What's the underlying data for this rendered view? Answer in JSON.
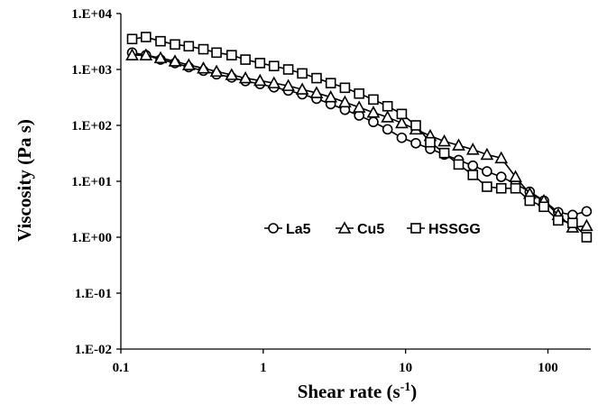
{
  "chart_data": {
    "type": "line",
    "x_scale": "log",
    "y_scale": "log",
    "xlim": [
      0.1,
      200
    ],
    "ylim": [
      0.01,
      10000
    ],
    "grid": false,
    "legend_position": "center-right",
    "xlabel": "Shear rate (s",
    "xlabel_sup": "-1",
    "xlabel_end": ")",
    "ylabel": "Viscosity (Pa s)",
    "x_ticks": [
      {
        "value": 0.1,
        "label": "0.1"
      },
      {
        "value": 1,
        "label": "1"
      },
      {
        "value": 10,
        "label": "10"
      },
      {
        "value": 100,
        "label": "100"
      }
    ],
    "y_ticks": [
      {
        "value": 0.01,
        "label": "1.E-02"
      },
      {
        "value": 0.1,
        "label": "1.E-01"
      },
      {
        "value": 1,
        "label": "1.E+00"
      },
      {
        "value": 10,
        "label": "1.E+01"
      },
      {
        "value": 100,
        "label": "1.E+02"
      },
      {
        "value": 1000,
        "label": "1.E+03"
      },
      {
        "value": 10000,
        "label": "1.E+04"
      }
    ],
    "series": [
      {
        "name": "La5",
        "marker": "circle",
        "x": [
          0.12,
          0.15,
          0.19,
          0.24,
          0.3,
          0.38,
          0.47,
          0.6,
          0.75,
          0.95,
          1.19,
          1.5,
          1.88,
          2.37,
          2.98,
          3.75,
          4.72,
          5.94,
          7.47,
          9.4,
          11.8,
          14.9,
          18.7,
          23.6,
          29.7,
          37.3,
          47,
          59.2,
          74.5,
          93.7,
          118,
          149,
          187
        ],
        "y": [
          2000,
          1800,
          1500,
          1300,
          1100,
          950,
          820,
          720,
          620,
          550,
          480,
          420,
          360,
          300,
          240,
          190,
          150,
          115,
          85,
          60,
          48,
          38,
          30,
          24,
          19,
          15,
          12,
          9,
          6.5,
          4.5,
          2.8,
          2.5,
          2.9
        ]
      },
      {
        "name": "Cu5",
        "marker": "triangle",
        "x": [
          0.12,
          0.15,
          0.19,
          0.24,
          0.3,
          0.38,
          0.47,
          0.6,
          0.75,
          0.95,
          1.19,
          1.5,
          1.88,
          2.37,
          2.98,
          3.75,
          4.72,
          5.94,
          7.47,
          9.4,
          11.8,
          14.9,
          18.7,
          23.6,
          29.7,
          37.3,
          47,
          59.2,
          74.5,
          93.7,
          118,
          149,
          187
        ],
        "y": [
          1800,
          1800,
          1600,
          1400,
          1200,
          1050,
          920,
          800,
          700,
          630,
          570,
          510,
          440,
          380,
          320,
          260,
          210,
          170,
          140,
          110,
          85,
          65,
          52,
          44,
          37,
          30,
          26,
          12,
          6,
          4.5,
          2.5,
          1.5,
          1.6
        ]
      },
      {
        "name": "HSSGG",
        "marker": "square",
        "x": [
          0.12,
          0.15,
          0.19,
          0.24,
          0.3,
          0.38,
          0.47,
          0.6,
          0.75,
          0.95,
          1.19,
          1.5,
          1.88,
          2.37,
          2.98,
          3.75,
          4.72,
          5.94,
          7.47,
          9.4,
          11.8,
          14.9,
          18.7,
          23.6,
          29.7,
          37.3,
          47,
          59.2,
          74.5,
          93.7,
          118,
          149,
          187
        ],
        "y": [
          3500,
          3800,
          3200,
          2800,
          2600,
          2300,
          2000,
          1800,
          1500,
          1300,
          1150,
          1000,
          850,
          700,
          570,
          470,
          370,
          290,
          220,
          160,
          100,
          50,
          32,
          20,
          13,
          8,
          7.5,
          7.5,
          4.5,
          3.5,
          2,
          1.8,
          1
        ]
      }
    ]
  }
}
